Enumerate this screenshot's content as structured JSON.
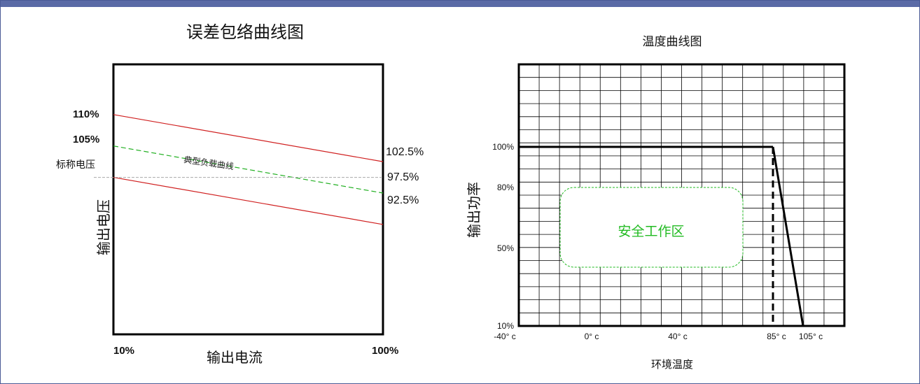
{
  "colors": {
    "header": "#5a6aa6",
    "limit_line": "#d02020",
    "typical_line": "#22b022",
    "safe_zone": "#22bb22",
    "grid": "#000000"
  },
  "chart_data": [
    {
      "type": "line",
      "title": "误差包络曲线图",
      "xlabel": "输出电流",
      "ylabel": "输出电压",
      "x_ticks": [
        "10%",
        "100%"
      ],
      "y_left_labels": [
        "110%",
        "105%",
        "标称电压"
      ],
      "y_right_labels": [
        "102.5%",
        "97.5%",
        "92.5%"
      ],
      "annotation": "典型负载曲线",
      "x": [
        10,
        100
      ],
      "nominal_value": 100,
      "series": [
        {
          "values": [
            110,
            102.5
          ],
          "style": "solid",
          "color": "#d02020"
        },
        {
          "values": [
            105,
            97.5
          ],
          "style": "dashed",
          "color": "#22b022"
        },
        {
          "values": [
            100,
            92.5
          ],
          "style": "solid",
          "color": "#d02020"
        }
      ],
      "xlim": [
        10,
        100
      ],
      "ylim": [
        75,
        118
      ],
      "grid": false
    },
    {
      "type": "line",
      "title": "温度曲线图",
      "xlabel": "环境温度",
      "ylabel": "输出功率",
      "x_ticks": [
        {
          "value": -40,
          "label": "-40° c"
        },
        {
          "value": 0,
          "label": "0° c"
        },
        {
          "value": 40,
          "label": "40° c"
        },
        {
          "value": 85,
          "label": "85° c"
        },
        {
          "value": 105,
          "label": "105° c"
        }
      ],
      "y_ticks": [
        {
          "value": 10,
          "label": "10%"
        },
        {
          "value": 50,
          "label": "50%"
        },
        {
          "value": 80,
          "label": "80%"
        },
        {
          "value": 100,
          "label": "100%"
        }
      ],
      "series": [
        {
          "x": [
            -40,
            85,
            105
          ],
          "values": [
            100,
            100,
            10
          ]
        }
      ],
      "vertical_marker": {
        "x": 85,
        "style": "dashed"
      },
      "safe_zone_label": "安全工作区",
      "grid": true
    }
  ]
}
